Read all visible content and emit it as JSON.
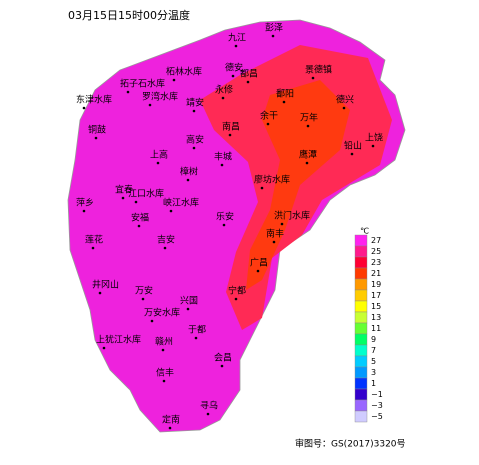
{
  "title": "03月15日15时00分温度",
  "places": [
    "九江",
    "彭泽",
    "德安",
    "柘林水库",
    "都昌",
    "景德镇",
    "拓子石水库",
    "东津水库",
    "罗湾水库",
    "永修",
    "靖安",
    "鄱阳",
    "德兴",
    "余干",
    "万年",
    "铜鼓",
    "高安",
    "南昌",
    "上饶",
    "上高",
    "丰城",
    "鹰潭",
    "铅山",
    "樟树",
    "宜春",
    "江口水库",
    "峡江水库",
    "廖坊水库",
    "萍乡",
    "安福",
    "乐安",
    "洪门水库",
    "莲花",
    "吉安",
    "南丰",
    "广昌",
    "井冈山",
    "万安",
    "兴国",
    "宁都",
    "万安水库",
    "于都",
    "上犹江水库",
    "赣州",
    "会昌",
    "信丰",
    "寻乌",
    "定南"
  ],
  "legend": {
    "unit": "℃",
    "labels": [
      "27",
      "25",
      "23",
      "21",
      "19",
      "17",
      "15",
      "13",
      "11",
      "9",
      "7",
      "5",
      "3",
      "1",
      "−1",
      "−3",
      "−5"
    ],
    "colors": [
      "#ff22ee",
      "#ff1a8c",
      "#ff0033",
      "#ff3a00",
      "#ff9900",
      "#ffcc00",
      "#ffff00",
      "#c8ff33",
      "#66ff33",
      "#00ff66",
      "#00ffcc",
      "#00ccff",
      "#0099ff",
      "#0033ff",
      "#3300cc",
      "#9966ff",
      "#d0ccff"
    ]
  },
  "approval": "审图号：GS(2017)3320号"
}
